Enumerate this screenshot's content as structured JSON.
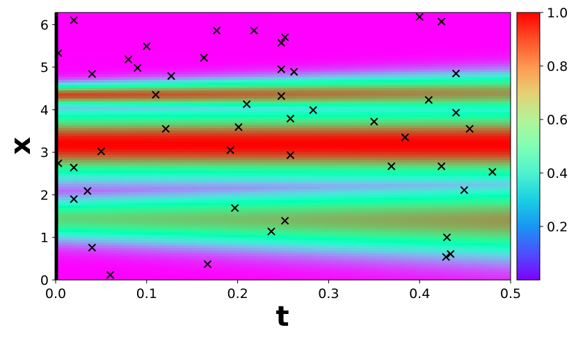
{
  "chart_data": {
    "type": "heatmap",
    "title": "",
    "xlabel": "t",
    "ylabel": "x",
    "xlim": [
      0,
      0.5
    ],
    "ylim": [
      0,
      6.283
    ],
    "x_ticks": [
      "0.0",
      "0.1",
      "0.2",
      "0.3",
      "0.4",
      "0.5"
    ],
    "y_ticks": [
      "0",
      "1",
      "2",
      "3",
      "4",
      "5",
      "6"
    ],
    "colormap": "rainbow",
    "colorbar": {
      "range": [
        0,
        1
      ],
      "ticks": [
        "0.2",
        "0.4",
        "0.6",
        "0.8",
        "1.0"
      ]
    },
    "grid": false,
    "marker": "x",
    "marker_color": "#000000",
    "points": [
      {
        "t": 0.003,
        "x": 5.33
      },
      {
        "t": 0.02,
        "x": 6.1
      },
      {
        "t": 0.04,
        "x": 4.84
      },
      {
        "t": 0.08,
        "x": 5.18
      },
      {
        "t": 0.09,
        "x": 4.98
      },
      {
        "t": 0.1,
        "x": 5.49
      },
      {
        "t": 0.11,
        "x": 4.35
      },
      {
        "t": 0.127,
        "x": 4.79
      },
      {
        "t": 0.163,
        "x": 5.22
      },
      {
        "t": 0.177,
        "x": 5.86
      },
      {
        "t": 0.218,
        "x": 5.86
      },
      {
        "t": 0.248,
        "x": 5.57
      },
      {
        "t": 0.252,
        "x": 5.7
      },
      {
        "t": 0.248,
        "x": 4.95
      },
      {
        "t": 0.262,
        "x": 4.89
      },
      {
        "t": 0.248,
        "x": 4.32
      },
      {
        "t": 0.21,
        "x": 4.13
      },
      {
        "t": 0.283,
        "x": 3.99
      },
      {
        "t": 0.258,
        "x": 3.79
      },
      {
        "t": 0.201,
        "x": 3.59
      },
      {
        "t": 0.121,
        "x": 3.55
      },
      {
        "t": 0.192,
        "x": 3.05
      },
      {
        "t": 0.05,
        "x": 3.02
      },
      {
        "t": 0.258,
        "x": 2.93
      },
      {
        "t": 0.003,
        "x": 2.74
      },
      {
        "t": 0.02,
        "x": 2.64
      },
      {
        "t": 0.035,
        "x": 2.09
      },
      {
        "t": 0.02,
        "x": 1.9
      },
      {
        "t": 0.197,
        "x": 1.69
      },
      {
        "t": 0.252,
        "x": 1.39
      },
      {
        "t": 0.237,
        "x": 1.14
      },
      {
        "t": 0.04,
        "x": 0.76
      },
      {
        "t": 0.167,
        "x": 0.37
      },
      {
        "t": 0.06,
        "x": 0.12
      },
      {
        "t": 0.35,
        "x": 3.72
      },
      {
        "t": 0.384,
        "x": 3.35
      },
      {
        "t": 0.369,
        "x": 2.67
      },
      {
        "t": 0.4,
        "x": 6.18
      },
      {
        "t": 0.424,
        "x": 6.07
      },
      {
        "t": 0.41,
        "x": 4.23
      },
      {
        "t": 0.44,
        "x": 4.85
      },
      {
        "t": 0.44,
        "x": 3.93
      },
      {
        "t": 0.455,
        "x": 3.55
      },
      {
        "t": 0.424,
        "x": 2.67
      },
      {
        "t": 0.48,
        "x": 2.54
      },
      {
        "t": 0.449,
        "x": 2.11
      },
      {
        "t": 0.43,
        "x": 1.0
      },
      {
        "t": 0.434,
        "x": 0.61
      },
      {
        "t": 0.429,
        "x": 0.54
      }
    ]
  }
}
